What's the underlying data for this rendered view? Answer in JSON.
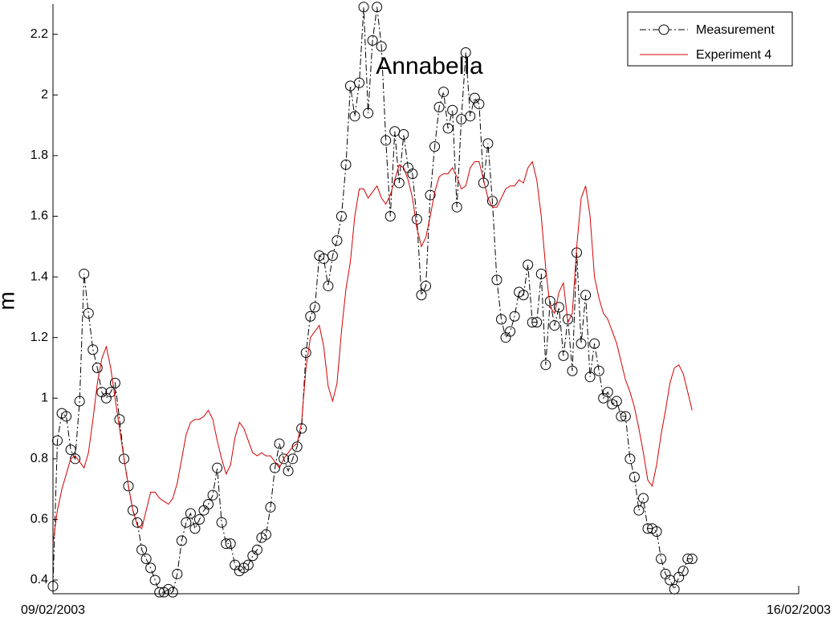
{
  "chart_data": {
    "type": "line",
    "title": "Annabella",
    "y_label": "m",
    "xlim": [
      0,
      168
    ],
    "xticks": [
      {
        "value": 0,
        "label": "09/02/2003"
      },
      {
        "value": 168,
        "label": "16/02/2003"
      }
    ],
    "ylim": [
      0.355,
      2.3
    ],
    "yticks": [
      0.4,
      0.6,
      0.8,
      1,
      1.2,
      1.4,
      1.6,
      1.8,
      2,
      2.2
    ],
    "legend": "upper right",
    "x": [
      0,
      1,
      2,
      3,
      4,
      5,
      6,
      7,
      8,
      9,
      10,
      11,
      12,
      13,
      14,
      15,
      16,
      17,
      18,
      19,
      20,
      21,
      22,
      23,
      24,
      25,
      26,
      27,
      28,
      29,
      30,
      31,
      32,
      33,
      34,
      35,
      36,
      37,
      38,
      39,
      40,
      41,
      42,
      43,
      44,
      45,
      46,
      47,
      48,
      49,
      50,
      51,
      52,
      53,
      54,
      55,
      56,
      57,
      58,
      59,
      60,
      61,
      62,
      63,
      64,
      65,
      66,
      67,
      68,
      69,
      70,
      71,
      72,
      73,
      74,
      75,
      76,
      77,
      78,
      79,
      80,
      81,
      82,
      83,
      84,
      85,
      86,
      87,
      88,
      89,
      90,
      91,
      92,
      93,
      94,
      95,
      96,
      97,
      98,
      99,
      100,
      101,
      102,
      103,
      104,
      105,
      106,
      107,
      108,
      109,
      110,
      111,
      112,
      113,
      114,
      115,
      116,
      117,
      118,
      119,
      120,
      121,
      122,
      123,
      124,
      125,
      126,
      127,
      128,
      129,
      130,
      131,
      132,
      133,
      134,
      135,
      136,
      137,
      138,
      139,
      140,
      141,
      142,
      143,
      144
    ],
    "series": [
      {
        "name": "Measurement",
        "color": "#000000",
        "marker": "circle",
        "values": [
          0.38,
          0.86,
          0.95,
          0.94,
          0.83,
          0.8,
          0.99,
          1.41,
          1.28,
          1.16,
          1.1,
          1.02,
          1,
          1.02,
          1.05,
          0.93,
          0.8,
          0.71,
          0.63,
          0.59,
          0.5,
          0.47,
          0.44,
          0.4,
          0.36,
          0.36,
          0.37,
          0.36,
          0.42,
          0.53,
          0.59,
          0.62,
          0.57,
          0.6,
          0.63,
          0.65,
          0.68,
          0.77,
          0.59,
          0.52,
          0.52,
          0.45,
          0.43,
          0.44,
          0.45,
          0.48,
          0.5,
          0.54,
          0.55,
          0.64,
          0.77,
          0.85,
          0.8,
          0.76,
          0.8,
          0.84,
          0.9,
          1.15,
          1.27,
          1.3,
          1.47,
          1.46,
          1.37,
          1.47,
          1.52,
          1.6,
          1.77,
          2.03,
          1.93,
          2.04,
          2.29,
          1.94,
          2.18,
          2.29,
          2.16,
          1.85,
          1.6,
          1.88,
          1.71,
          1.87,
          1.76,
          1.74,
          1.59,
          1.34,
          1.37,
          1.67,
          1.83,
          1.96,
          2.01,
          1.89,
          1.95,
          1.63,
          1.92,
          2.14,
          1.93,
          1.99,
          1.97,
          1.71,
          1.84,
          1.65,
          1.39,
          1.26,
          1.2,
          1.22,
          1.27,
          1.35,
          1.34,
          1.44,
          1.25,
          1.25,
          1.41,
          1.11,
          1.32,
          1.24,
          1.3,
          1.14,
          1.26,
          1.09,
          1.48,
          1.18,
          1.34,
          1.07,
          1.18,
          1.09,
          1,
          1.02,
          0.98,
          0.99,
          0.94,
          0.94,
          0.8,
          0.74,
          0.63,
          0.67,
          0.57,
          0.57,
          0.56,
          0.47,
          0.42,
          0.4,
          0.37,
          0.41,
          0.43,
          0.47,
          0.47
        ]
      },
      {
        "name": "Experiment 4",
        "color": "#d40000",
        "values": [
          0.52,
          0.63,
          0.7,
          0.75,
          0.8,
          0.81,
          0.79,
          0.77,
          0.82,
          0.93,
          1.05,
          1.13,
          1.17,
          1.1,
          1,
          0.9,
          0.8,
          0.71,
          0.63,
          0.58,
          0.57,
          0.63,
          0.69,
          0.69,
          0.67,
          0.66,
          0.65,
          0.67,
          0.72,
          0.8,
          0.88,
          0.92,
          0.93,
          0.93,
          0.94,
          0.96,
          0.93,
          0.86,
          0.8,
          0.75,
          0.78,
          0.87,
          0.92,
          0.9,
          0.86,
          0.82,
          0.81,
          0.82,
          0.81,
          0.81,
          0.79,
          0.77,
          0.8,
          0.82,
          0.84,
          0.85,
          0.92,
          1.1,
          1.2,
          1.22,
          1.24,
          1.17,
          1.04,
          0.99,
          1.05,
          1.22,
          1.36,
          1.45,
          1.6,
          1.69,
          1.69,
          1.66,
          1.68,
          1.7,
          1.66,
          1.64,
          1.67,
          1.72,
          1.77,
          1.76,
          1.72,
          1.66,
          1.56,
          1.5,
          1.53,
          1.6,
          1.68,
          1.73,
          1.74,
          1.74,
          1.76,
          1.73,
          1.69,
          1.7,
          1.76,
          1.78,
          1.78,
          1.72,
          1.66,
          1.63,
          1.63,
          1.66,
          1.69,
          1.7,
          1.7,
          1.72,
          1.71,
          1.76,
          1.78,
          1.72,
          1.6,
          1.43,
          1.3,
          1.28,
          1.35,
          1.38,
          1.25,
          1.28,
          1.5,
          1.66,
          1.7,
          1.6,
          1.4,
          1.33,
          1.28,
          1.26,
          1.22,
          1.18,
          1.12,
          1.06,
          1.02,
          0.97,
          0.9,
          0.82,
          0.73,
          0.71,
          0.78,
          0.88,
          0.96,
          1.05,
          1.1,
          1.11,
          1.08,
          1.02,
          0.96
        ]
      }
    ]
  }
}
